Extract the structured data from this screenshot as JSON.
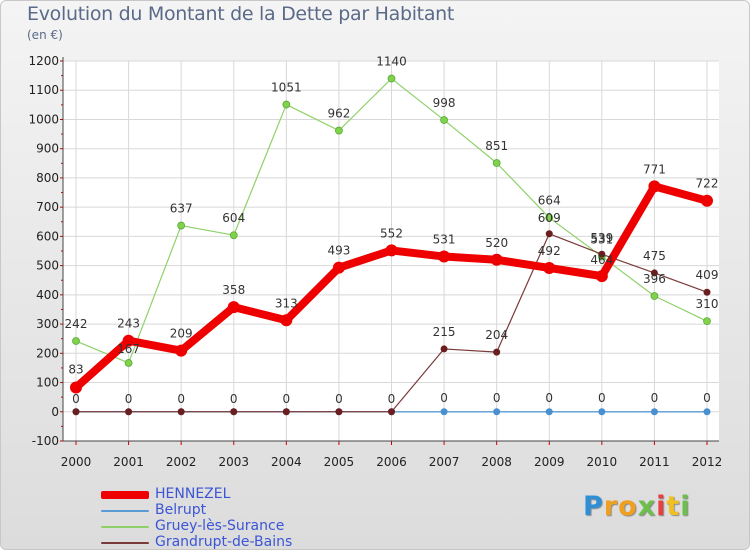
{
  "header": {
    "title": "Evolution du Montant de la Dette par Habitant",
    "subtitle": "(en €)"
  },
  "chart_data": {
    "type": "line",
    "title": "Evolution du Montant de la Dette par Habitant",
    "subtitle": "(en €)",
    "xlabel": "",
    "ylabel": "",
    "ylim": [
      -100,
      1200
    ],
    "y_ticks": [
      -100,
      0,
      100,
      200,
      300,
      400,
      500,
      600,
      700,
      800,
      900,
      1000,
      1100,
      1200
    ],
    "grid": true,
    "x": [
      "2000",
      "2001",
      "2002",
      "2003",
      "2004",
      "2005",
      "2006",
      "2007",
      "2008",
      "2009",
      "2010",
      "2011",
      "2012"
    ],
    "series": [
      {
        "name": "HENNEZEL",
        "color": "#ee0000",
        "values": [
          83,
          243,
          209,
          358,
          313,
          493,
          552,
          531,
          520,
          492,
          464,
          771,
          722
        ],
        "labels": [
          "83",
          "243",
          "209",
          "358",
          "313",
          "493",
          "552",
          "531",
          "520",
          "492",
          "464",
          "771",
          "722"
        ]
      },
      {
        "name": "Belrupt",
        "color": "#5b9bd5",
        "values": [
          0,
          0,
          0,
          0,
          0,
          0,
          0,
          0,
          0,
          0,
          0,
          0,
          0
        ],
        "labels": [
          "0",
          "0",
          "0",
          "0",
          "0",
          "0",
          "0",
          "0",
          "0",
          "0",
          "0",
          "0",
          "0"
        ]
      },
      {
        "name": "Gruey-lès-Surance",
        "color": "#8ed16a",
        "values": [
          242,
          167,
          637,
          604,
          1051,
          962,
          1140,
          998,
          851,
          664,
          531,
          396,
          310
        ],
        "labels": [
          "242",
          "167",
          "637",
          "604",
          "1051",
          "962",
          "1140",
          "998",
          "851",
          "664",
          "531",
          "396",
          "310"
        ]
      },
      {
        "name": "Grandrupt-de-Bains",
        "color": "#7a3a3a",
        "values": [
          0,
          0,
          0,
          0,
          0,
          0,
          0,
          215,
          204,
          609,
          539,
          475,
          409
        ],
        "labels": [
          "0",
          "0",
          "0",
          "0",
          "0",
          "0",
          "0",
          "215",
          "204",
          "609",
          "539",
          "475",
          "409"
        ]
      }
    ],
    "legend_position": "bottom-left"
  },
  "brand": {
    "letters": [
      "P",
      "r",
      "o",
      "x",
      "i",
      "t",
      "i"
    ],
    "colors": [
      "#2e8fd6",
      "#f0a020",
      "#f0a020",
      "#6cc04a",
      "#e84040",
      "#f0c020",
      "#6cc04a"
    ]
  }
}
